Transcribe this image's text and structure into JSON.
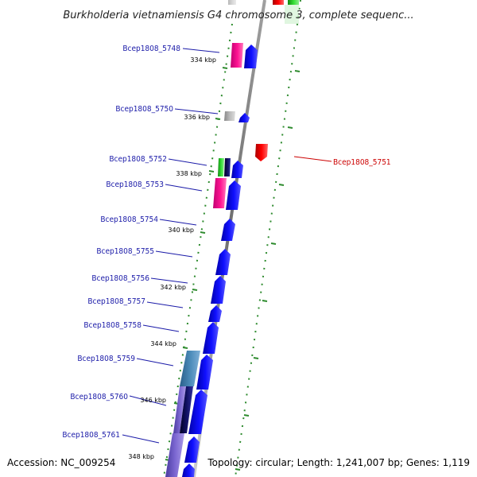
{
  "title": "Burkholderia vietnamiensis G4 chromosome 3, complete sequenc...",
  "footer": {
    "accession": "Accession: NC_009254",
    "summary": "Topology: circular; Length: 1,241,007 bp; Genes: 1,119"
  },
  "colors": {
    "label_forward": "#1a1aa8",
    "label_reverse": "#cc0000",
    "backbone": "#808080",
    "tick_dot": "#2e8b2e",
    "cds_blue": "#0000ee",
    "cds_red": "#ee0000",
    "cds_pink": "#ee1493",
    "cds_green": "#22bb22",
    "cds_grey": "#aaaaaa",
    "cds_navy": "#0a0a4a",
    "cds_steel": "#4682b4",
    "cds_purple": "#7766cc"
  },
  "ticks": [
    "334 kbp",
    "336 kbp",
    "338 kbp",
    "340 kbp",
    "342 kbp",
    "344 kbp",
    "346 kbp",
    "348 kbp"
  ],
  "genes_forward": [
    {
      "label": "Bcep1808_5748",
      "color": "#1a1aa8"
    },
    {
      "label": "Bcep1808_5750",
      "color": "#1a1aa8"
    },
    {
      "label": "Bcep1808_5752",
      "color": "#1a1aa8"
    },
    {
      "label": "Bcep1808_5753",
      "color": "#1a1aa8"
    },
    {
      "label": "Bcep1808_5754",
      "color": "#1a1aa8"
    },
    {
      "label": "Bcep1808_5755",
      "color": "#1a1aa8"
    },
    {
      "label": "Bcep1808_5756",
      "color": "#1a1aa8"
    },
    {
      "label": "Bcep1808_5757",
      "color": "#1a1aa8"
    },
    {
      "label": "Bcep1808_5758",
      "color": "#1a1aa8"
    },
    {
      "label": "Bcep1808_5759",
      "color": "#1a1aa8"
    },
    {
      "label": "Bcep1808_5760",
      "color": "#1a1aa8"
    },
    {
      "label": "Bcep1808_5761",
      "color": "#1a1aa8"
    }
  ],
  "genes_reverse": [
    {
      "label": "Bcep1808_5751",
      "color": "#cc0000"
    }
  ]
}
